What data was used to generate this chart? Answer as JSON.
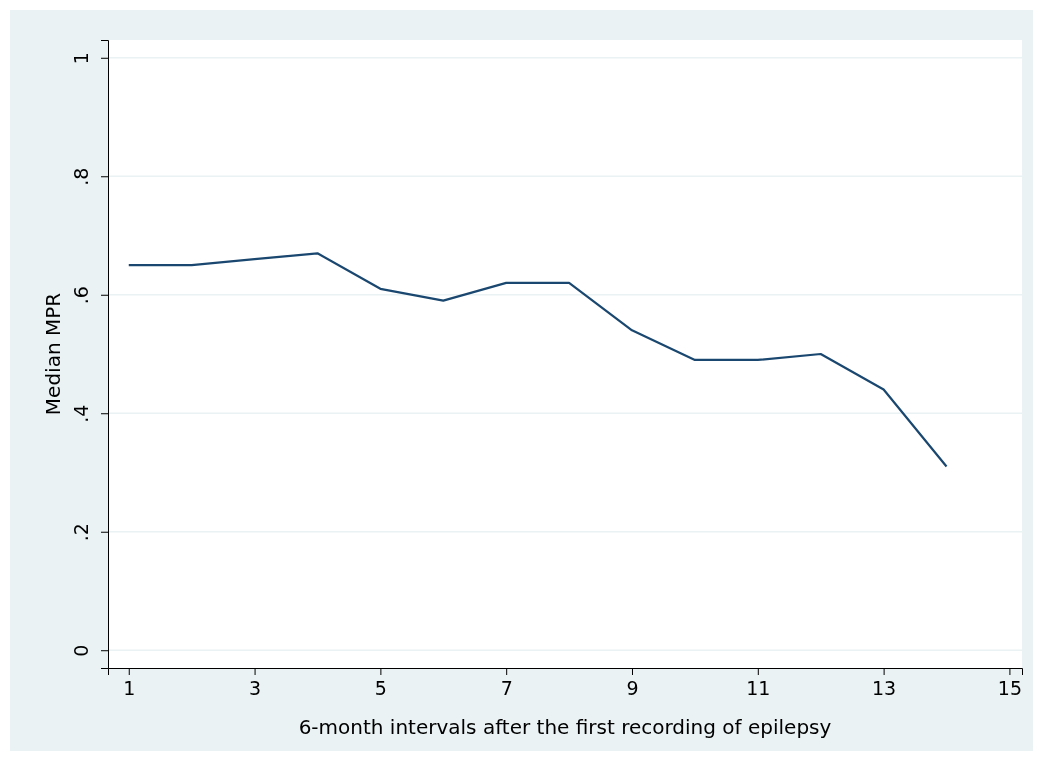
{
  "chart_data": {
    "type": "line",
    "xlabel": "6-month intervals after the first recording of epilepsy",
    "ylabel": "Median MPR",
    "x": [
      1,
      2,
      3,
      4,
      5,
      6,
      7,
      8,
      9,
      10,
      11,
      12,
      13,
      14
    ],
    "series": [
      {
        "color": "#1a476f",
        "values": [
          0.65,
          0.65,
          0.66,
          0.67,
          0.61,
          0.59,
          0.62,
          0.62,
          0.54,
          0.49,
          0.49,
          0.5,
          0.44,
          0.31
        ]
      }
    ],
    "xlim": [
      0.67,
      15.2
    ],
    "ylim": [
      -0.03,
      1.03
    ],
    "xticks": [
      1,
      3,
      5,
      7,
      9,
      11,
      13,
      15
    ],
    "yticks": [
      {
        "value": 0,
        "label": "0"
      },
      {
        "value": 0.2,
        "label": ".2"
      },
      {
        "value": 0.4,
        "label": ".4"
      },
      {
        "value": 0.6,
        "label": ".6"
      },
      {
        "value": 0.8,
        "label": ".8"
      },
      {
        "value": 1,
        "label": "1"
      }
    ],
    "grid": "y",
    "marker": "none",
    "line_style": "solid"
  }
}
